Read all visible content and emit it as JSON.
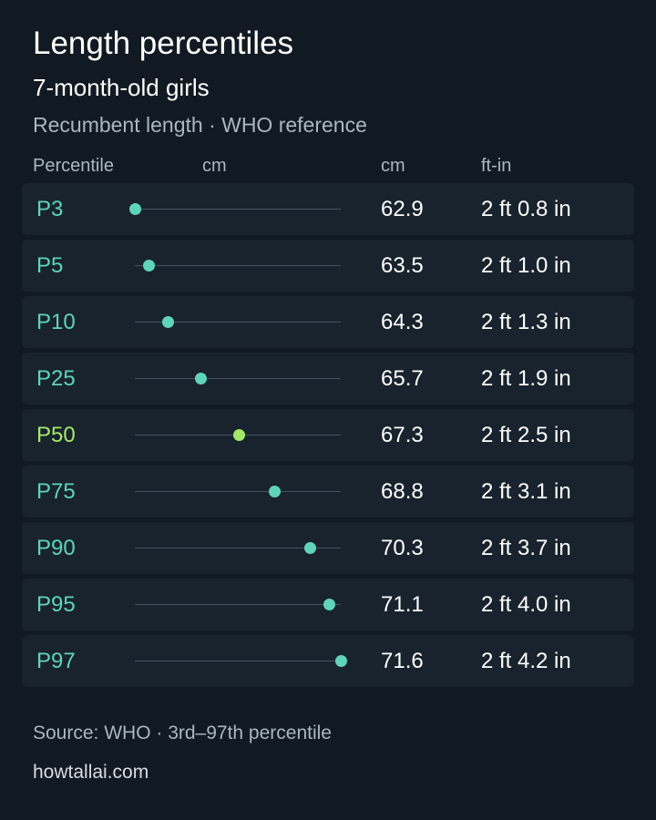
{
  "header": {
    "title": "Length percentiles",
    "subtitle": "7-month-old girls",
    "note": "Recumbent length · WHO reference"
  },
  "table": {
    "columns": [
      "Percentile",
      "cm",
      "cm",
      "ft-in"
    ],
    "rows": [
      {
        "percentile": "P3",
        "cm": 62.9,
        "ft_in": "2 ft 0.8 in",
        "color": "#5fd4b8"
      },
      {
        "percentile": "P5",
        "cm": 63.5,
        "ft_in": "2 ft 1.0 in",
        "color": "#5fd4b8"
      },
      {
        "percentile": "P10",
        "cm": 64.3,
        "ft_in": "2 ft 1.3 in",
        "color": "#5fd4b8"
      },
      {
        "percentile": "P25",
        "cm": 65.7,
        "ft_in": "2 ft 1.9 in",
        "color": "#5fd4b8"
      },
      {
        "percentile": "P50",
        "cm": 67.3,
        "ft_in": "2 ft 2.5 in",
        "color": "#a3e86a"
      },
      {
        "percentile": "P75",
        "cm": 68.8,
        "ft_in": "2 ft 3.1 in",
        "color": "#5fd4b8"
      },
      {
        "percentile": "P90",
        "cm": 70.3,
        "ft_in": "2 ft 3.7 in",
        "color": "#5fd4b8"
      },
      {
        "percentile": "P95",
        "cm": 71.1,
        "ft_in": "2 ft 4.0 in",
        "color": "#5fd4b8"
      },
      {
        "percentile": "P97",
        "cm": 71.6,
        "ft_in": "2 ft 4.2 in",
        "color": "#5fd4b8"
      }
    ]
  },
  "footer": {
    "source": "Source: WHO · 3rd–97th percentile",
    "site": "howtallai.com"
  }
}
